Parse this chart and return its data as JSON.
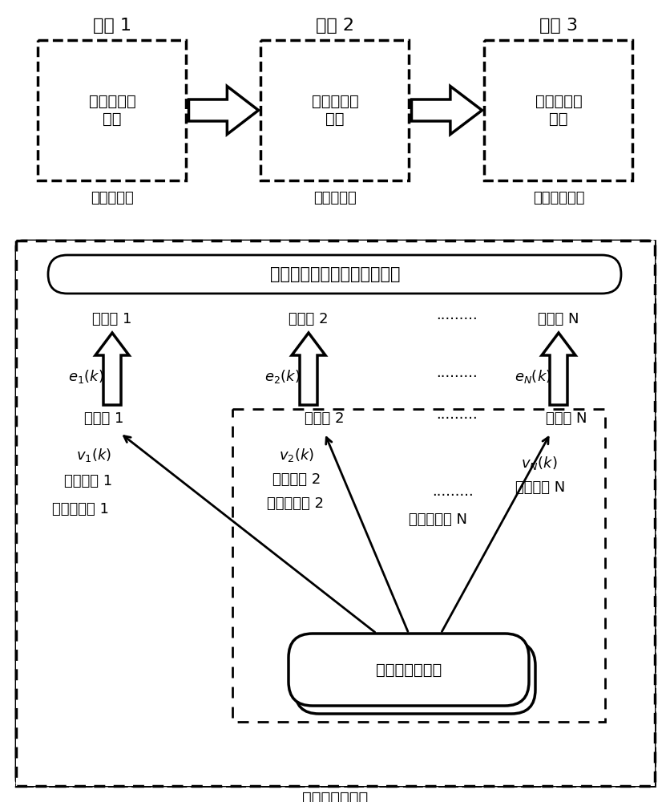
{
  "stage_labels": [
    "阶段 1",
    "阶段 2",
    "阶段 3"
  ],
  "stage_box_texts": [
    "坤基混凝土\n浇筑",
    "坤体混凝土\n浇筑",
    "坤面混凝土\n浇筑"
  ],
  "stage_sub_labels": [
    "碎压混凝土",
    "结构混凝土",
    "抗冲磨混凝土"
  ],
  "dynamic_opt_text": "混凝土运输系统动态决策优化",
  "pour_labels": [
    "浇筑点 1",
    "浇筑点 2",
    "浇筑点 N"
  ],
  "unload_labels": [
    "卸载点 1",
    "卸载点 2",
    "卸载点 N"
  ],
  "route_labels": [
    "运输路径 1",
    "运输路径 2",
    "运输路径 N"
  ],
  "fault_labels": [
    "故障发生率 1",
    "故障发生率 2",
    "故障发生率 N"
  ],
  "production_text": "混凝土生产系统",
  "transport_text": "混凝土运输系统",
  "bg_color": "#ffffff",
  "text_color": "#000000"
}
